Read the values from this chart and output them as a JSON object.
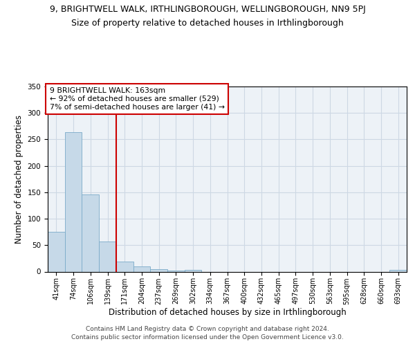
{
  "title_line1": "9, BRIGHTWELL WALK, IRTHLINGBOROUGH, WELLINGBOROUGH, NN9 5PJ",
  "title_line2": "Size of property relative to detached houses in Irthlingborough",
  "xlabel": "Distribution of detached houses by size in Irthlingborough",
  "ylabel": "Number of detached properties",
  "categories": [
    "41sqm",
    "74sqm",
    "106sqm",
    "139sqm",
    "171sqm",
    "204sqm",
    "237sqm",
    "269sqm",
    "302sqm",
    "334sqm",
    "367sqm",
    "400sqm",
    "432sqm",
    "465sqm",
    "497sqm",
    "530sqm",
    "563sqm",
    "595sqm",
    "628sqm",
    "660sqm",
    "693sqm"
  ],
  "values": [
    75,
    263,
    146,
    57,
    19,
    10,
    5,
    2,
    3,
    0,
    0,
    0,
    0,
    0,
    0,
    0,
    0,
    0,
    0,
    0,
    3
  ],
  "bar_color": "#c6d9e8",
  "bar_edge_color": "#7aaac8",
  "vline_color": "#cc0000",
  "ylim": [
    0,
    350
  ],
  "yticks": [
    0,
    50,
    100,
    150,
    200,
    250,
    300,
    350
  ],
  "annotation_title": "9 BRIGHTWELL WALK: 163sqm",
  "annotation_line2": "← 92% of detached houses are smaller (529)",
  "annotation_line3": "7% of semi-detached houses are larger (41) →",
  "annotation_box_color": "#cc0000",
  "grid_color": "#cdd8e4",
  "bg_color": "#edf2f7",
  "footer_line1": "Contains HM Land Registry data © Crown copyright and database right 2024.",
  "footer_line2": "Contains public sector information licensed under the Open Government Licence v3.0.",
  "title_fontsize": 9,
  "subtitle_fontsize": 9,
  "tick_fontsize": 7,
  "ylabel_fontsize": 8.5,
  "xlabel_fontsize": 8.5,
  "annotation_fontsize": 7.8
}
